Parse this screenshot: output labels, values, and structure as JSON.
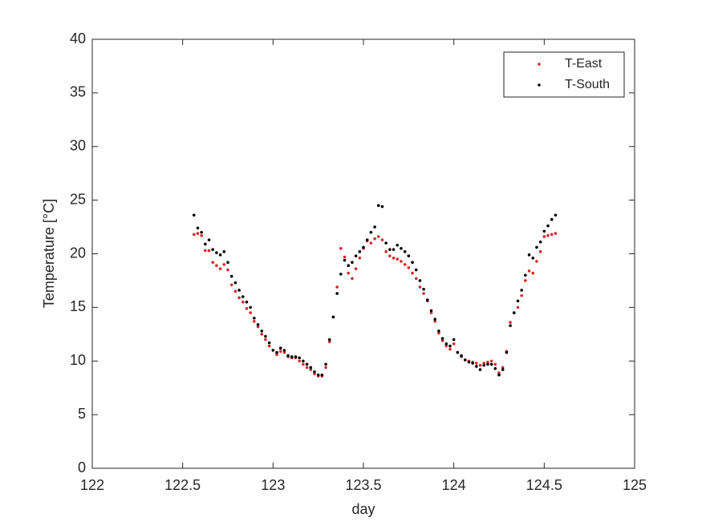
{
  "chart_data": {
    "type": "scatter",
    "xlabel": "day",
    "ylabel": "Temperature [°C]",
    "x": [
      122.5625,
      122.5833,
      122.6042,
      122.625,
      122.6458,
      122.6667,
      122.6875,
      122.7083,
      122.7292,
      122.75,
      122.7708,
      122.7917,
      122.8125,
      122.8333,
      122.8542,
      122.875,
      122.8958,
      122.9167,
      122.9375,
      122.9583,
      122.9792,
      123.0,
      123.0208,
      123.0417,
      123.0625,
      123.0833,
      123.1042,
      123.125,
      123.1458,
      123.1667,
      123.1875,
      123.2083,
      123.2292,
      123.25,
      123.2708,
      123.2917,
      123.3125,
      123.3333,
      123.3542,
      123.375,
      123.3958,
      123.4167,
      123.4375,
      123.4583,
      123.4792,
      123.5,
      123.5208,
      123.5417,
      123.5625,
      123.5833,
      123.6042,
      123.625,
      123.6458,
      123.6667,
      123.6875,
      123.7083,
      123.7292,
      123.75,
      123.7708,
      123.7917,
      123.8125,
      123.8333,
      123.8542,
      123.875,
      123.8958,
      123.9167,
      123.9375,
      123.9583,
      123.9792,
      124.0,
      124.0208,
      124.0417,
      124.0625,
      124.0833,
      124.1042,
      124.125,
      124.1458,
      124.1667,
      124.1875,
      124.2083,
      124.2292,
      124.25,
      124.2708,
      124.2917,
      124.3125,
      124.3333,
      124.3542,
      124.375,
      124.3958,
      124.4167,
      124.4375,
      124.4583,
      124.4792,
      124.5,
      124.5208,
      124.5417,
      124.5625
    ],
    "series": [
      {
        "name": "T-East",
        "color": "#d62728",
        "values": [
          21.8,
          21.9,
          21.7,
          20.3,
          20.3,
          19.2,
          18.9,
          18.6,
          19.0,
          18.5,
          17.1,
          16.5,
          15.9,
          15.5,
          14.9,
          14.5,
          13.7,
          13.2,
          12.5,
          12.0,
          11.4,
          11.0,
          10.6,
          10.9,
          10.8,
          10.4,
          10.3,
          10.3,
          10.0,
          9.7,
          9.4,
          9.2,
          8.8,
          8.6,
          8.6,
          9.4,
          11.8,
          14.1,
          16.9,
          20.5,
          19.7,
          18.2,
          17.7,
          18.6,
          19.6,
          20.5,
          21.2,
          21.0,
          21.4,
          21.6,
          21.3,
          20.2,
          19.8,
          19.6,
          19.5,
          19.3,
          19.0,
          18.7,
          18.2,
          17.7,
          16.9,
          16.3,
          15.6,
          14.5,
          13.7,
          12.6,
          11.9,
          11.4,
          11.1,
          11.6,
          10.8,
          10.4,
          10.1,
          10.0,
          9.9,
          9.8,
          9.6,
          9.8,
          9.9,
          10.0,
          9.7,
          8.9,
          9.4,
          10.9,
          13.6,
          14.5,
          15.0,
          16.1,
          17.5,
          18.4,
          18.2,
          19.3,
          20.2,
          21.6,
          21.7,
          21.8,
          21.9
        ]
      },
      {
        "name": "T-South",
        "color": "#000000",
        "values": [
          23.6,
          22.4,
          22.0,
          20.9,
          21.3,
          20.4,
          20.1,
          19.9,
          20.2,
          19.2,
          17.9,
          17.3,
          16.6,
          16.0,
          15.5,
          15.0,
          14.0,
          13.4,
          12.8,
          12.3,
          11.7,
          11.0,
          10.8,
          11.2,
          11.0,
          10.5,
          10.4,
          10.4,
          10.3,
          10.0,
          9.7,
          9.4,
          9.0,
          8.7,
          8.7,
          9.7,
          12.0,
          14.1,
          16.3,
          18.1,
          19.4,
          18.9,
          19.2,
          19.8,
          20.2,
          20.6,
          21.3,
          22.0,
          22.5,
          24.5,
          24.4,
          21.0,
          20.4,
          20.4,
          20.8,
          20.5,
          20.2,
          19.8,
          19.2,
          18.5,
          17.5,
          16.7,
          15.7,
          14.7,
          13.9,
          12.8,
          12.1,
          11.6,
          11.4,
          12.0,
          10.8,
          10.5,
          10.1,
          9.9,
          9.8,
          9.5,
          9.2,
          9.6,
          9.7,
          9.7,
          9.3,
          8.7,
          9.2,
          10.8,
          13.3,
          14.5,
          15.6,
          16.6,
          18.0,
          19.9,
          19.6,
          20.6,
          21.1,
          22.1,
          22.6,
          23.2,
          23.6
        ]
      }
    ],
    "xlim": [
      122,
      125
    ],
    "xticks": [
      122,
      122.5,
      123,
      123.5,
      124,
      124.5,
      125
    ],
    "ylim": [
      0,
      40
    ],
    "yticks": [
      0,
      5,
      10,
      15,
      20,
      25,
      30,
      35,
      40
    ],
    "legend": "top-right"
  }
}
